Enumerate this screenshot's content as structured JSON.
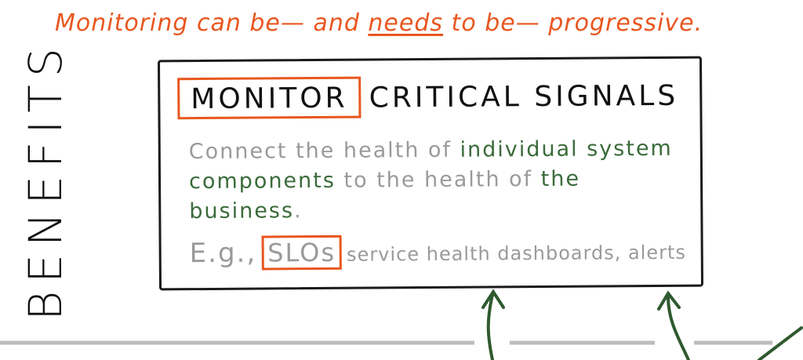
{
  "headline": {
    "before": "Monitoring can be— and ",
    "emphasis": "needs",
    "after": " to be— progressive."
  },
  "side_label": "BENEFITS",
  "panel": {
    "title_boxed": "MONITOR",
    "title_rest": "CRITICAL SIGNALS",
    "desc_1": "Connect the health of ",
    "desc_2": "individual system components",
    "desc_3": " to the health of ",
    "desc_4": "the business",
    "desc_5": ".",
    "example_prefix": "E.g.,",
    "example_boxed": "SLOs",
    "example_rest": "service health dashboards, alerts"
  },
  "colors": {
    "accent": "#e8571f",
    "ink": "#1b1b1b",
    "muted": "#9a9a9a",
    "green": "#3a6b3a",
    "line": "#bdbdbd"
  }
}
